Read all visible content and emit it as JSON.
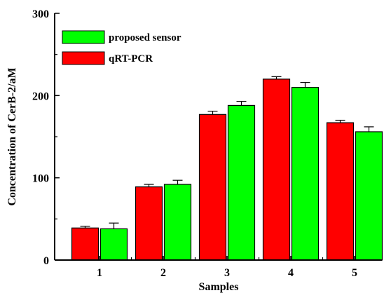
{
  "chart_data": {
    "type": "bar",
    "categories": [
      "1",
      "2",
      "3",
      "4",
      "5"
    ],
    "series": [
      {
        "name": "qRT-PCR",
        "color": "#ff0000",
        "values": [
          39,
          89,
          177,
          220,
          167
        ],
        "errors": [
          2,
          3,
          4,
          3,
          3
        ]
      },
      {
        "name": "proposed sensor",
        "color": "#00ff00",
        "values": [
          38,
          92,
          188,
          210,
          156
        ],
        "errors": [
          7,
          5,
          5,
          6,
          6
        ]
      }
    ],
    "legend_order": [
      "proposed sensor",
      "qRT-PCR"
    ],
    "xlabel": "Samples",
    "ylabel": "Concentration of CerB-2/aM",
    "ylim": [
      0,
      300
    ],
    "yticks": [
      0,
      100,
      200,
      300
    ],
    "grid": false,
    "legend_position": "top-left"
  }
}
